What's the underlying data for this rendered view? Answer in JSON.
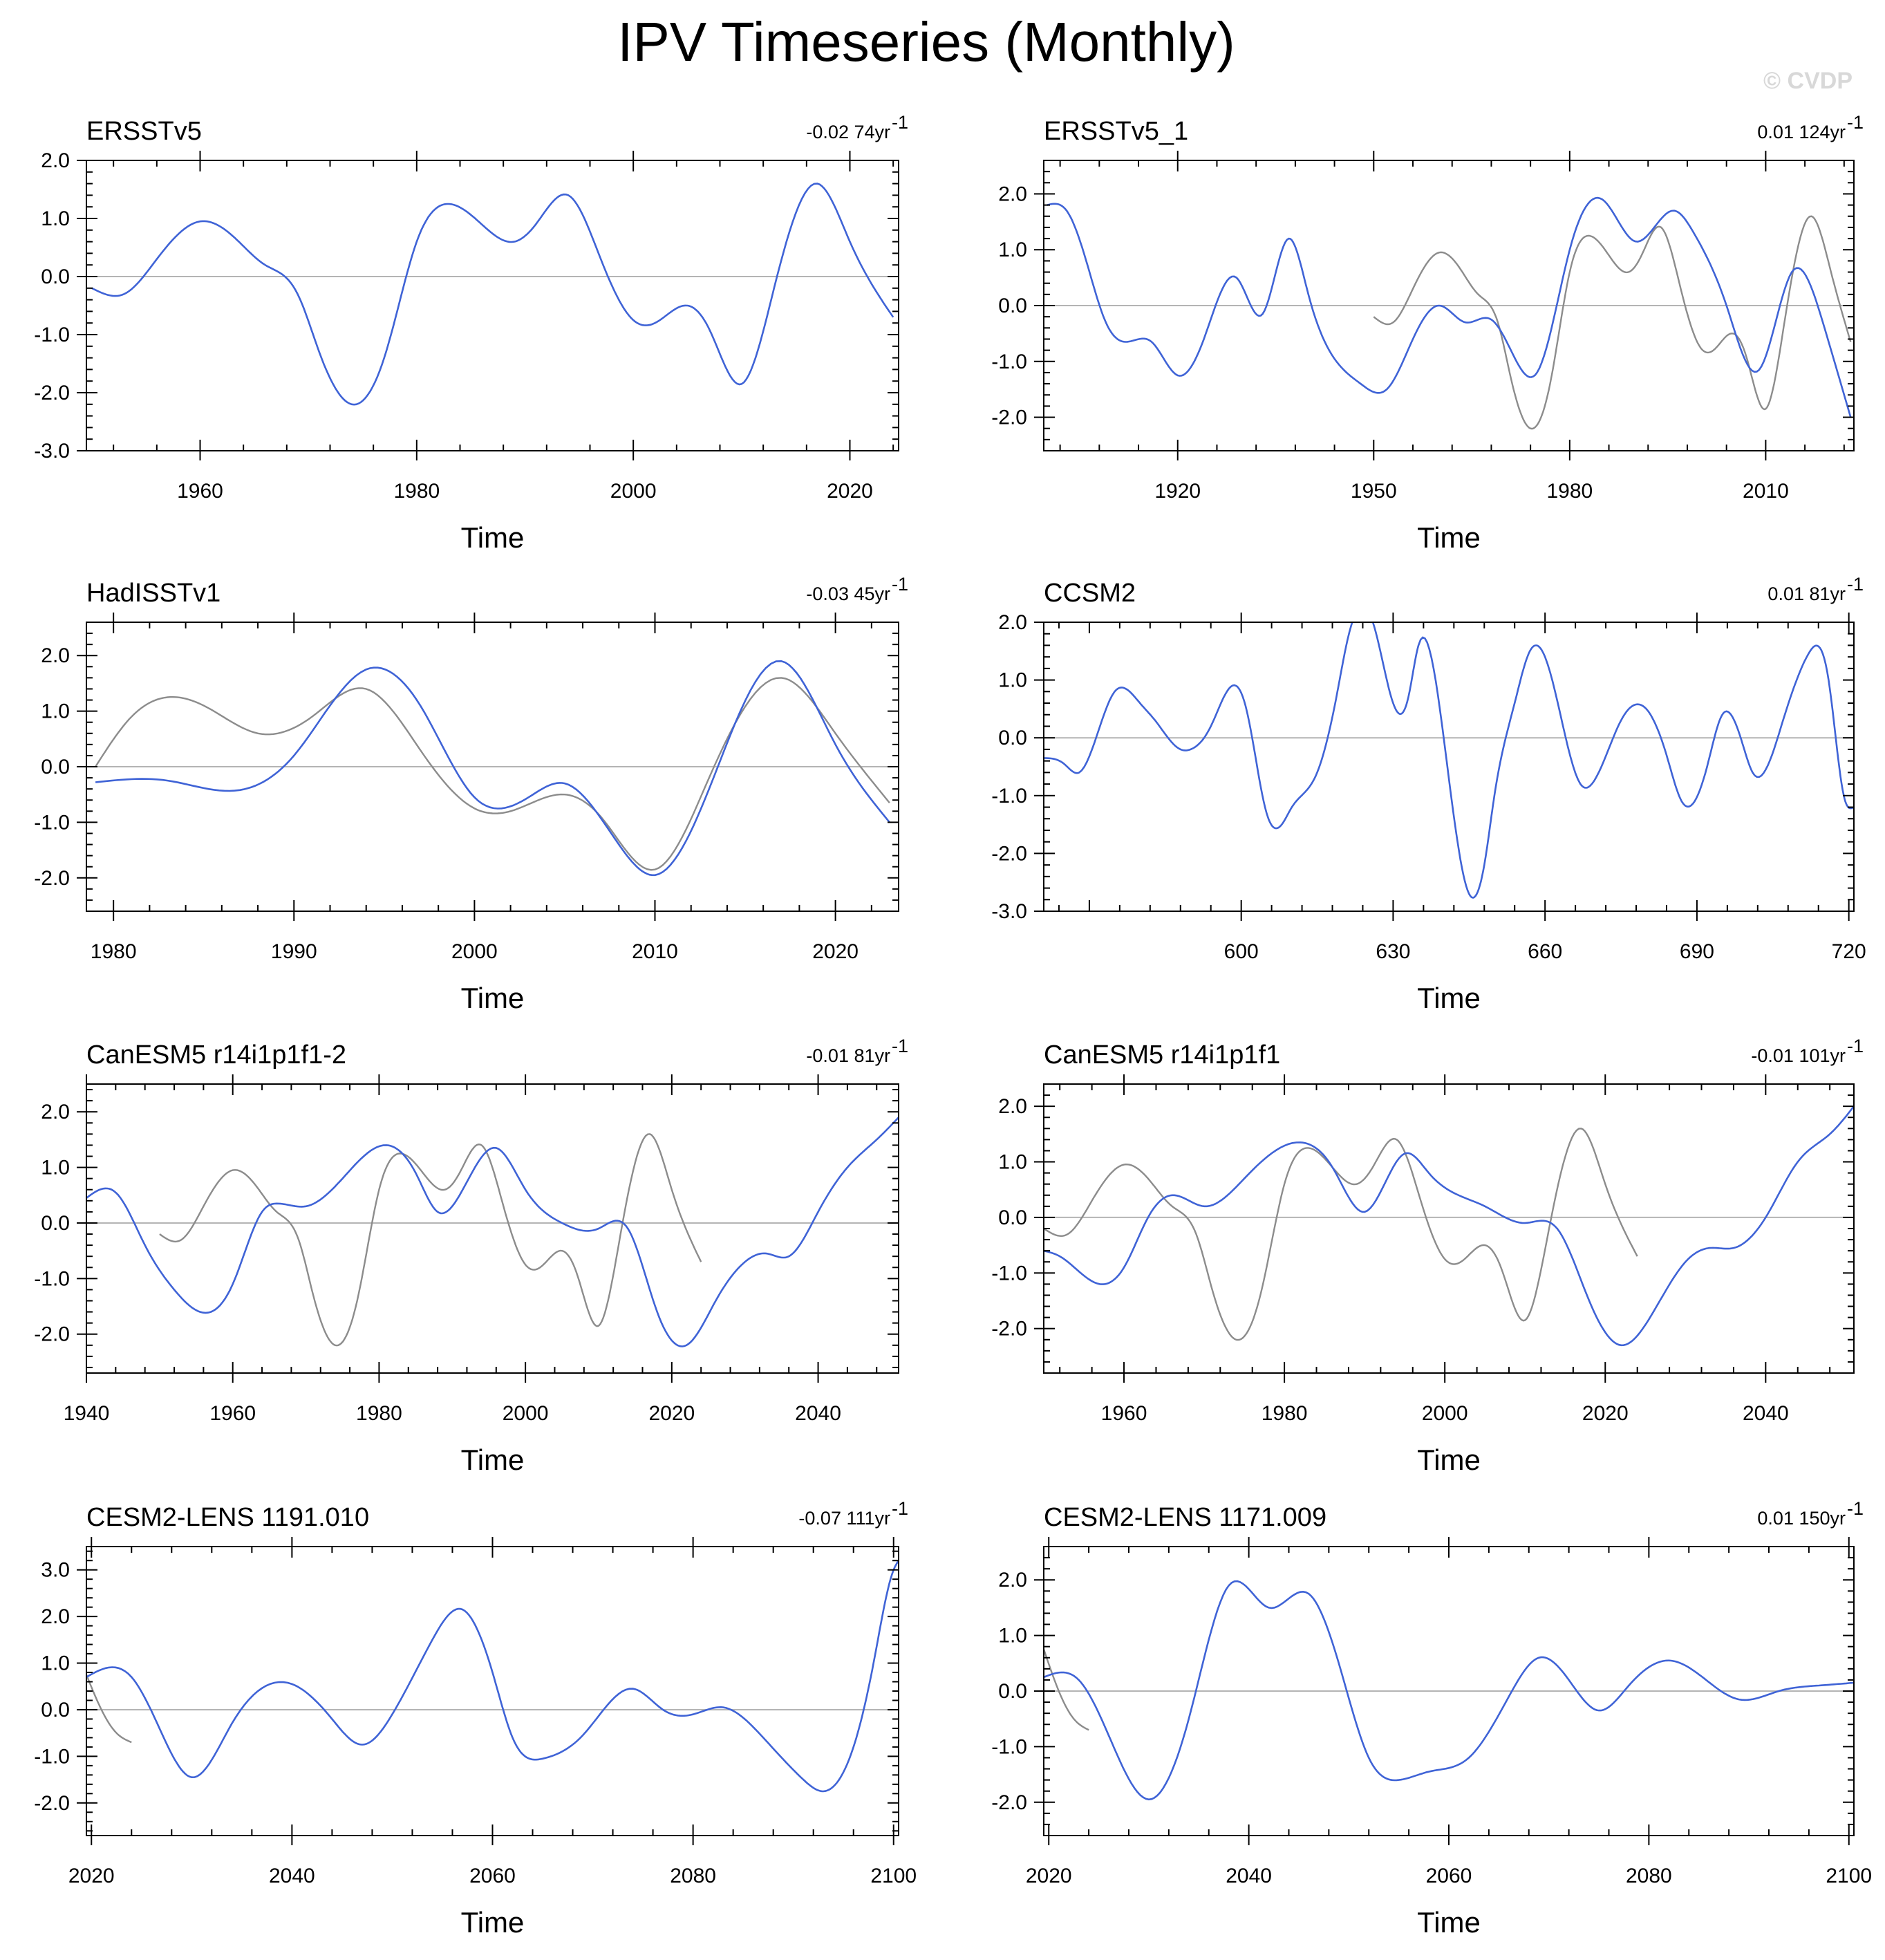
{
  "title": "IPV Timeseries (Monthly)",
  "watermark": "© CVDP",
  "colors": {
    "primary": "#3f63d6",
    "comparison": "#8c8c8c",
    "zero_line": "#b4b4b4",
    "frame": "#000000"
  },
  "chart_data": [
    {
      "type": "line",
      "title": "ERSSTv5",
      "trend_label": "-0.02 74yr",
      "trend_sup": "-1",
      "xlabel": "Time",
      "xlim": [
        1949.5,
        2024.5
      ],
      "ylim": [
        -3.0,
        2.0
      ],
      "xticks": [
        1960,
        1980,
        2000,
        2020
      ],
      "yticks": [
        -3.0,
        -2.0,
        -1.0,
        0.0,
        1.0,
        2.0
      ],
      "series": [
        {
          "role": "primary",
          "x": [
            1950,
            1953,
            1956,
            1960,
            1963,
            1966,
            1969,
            1971,
            1974,
            1977,
            1980,
            1983,
            1986,
            1989,
            1991,
            1994,
            1997,
            2000,
            2002,
            2005,
            2007,
            2010,
            2013,
            2017,
            2020,
            2024
          ],
          "y": [
            -0.2,
            -0.3,
            0.3,
            0.95,
            0.7,
            0.2,
            -0.3,
            -1.3,
            -2.2,
            -1.4,
            0.6,
            1.25,
            0.9,
            0.6,
            0.9,
            1.4,
            0.3,
            -0.75,
            -0.8,
            -0.5,
            -0.9,
            -1.85,
            -0.2,
            1.6,
            0.6,
            -0.7
          ]
        }
      ]
    },
    {
      "type": "line",
      "title": "ERSSTv5_1",
      "trend_label": "0.01 124yr",
      "trend_sup": "-1",
      "xlabel": "Time",
      "xlim": [
        1899.5,
        2023.5
      ],
      "ylim": [
        -2.6,
        2.6
      ],
      "xticks": [
        1920,
        1950,
        1980,
        2010
      ],
      "yticks": [
        -2.0,
        -1.0,
        0.0,
        1.0,
        2.0
      ],
      "series": [
        {
          "role": "primary",
          "x": [
            1900,
            1903,
            1906,
            1909,
            1912,
            1916,
            1920,
            1924,
            1929,
            1933,
            1937,
            1940,
            1945,
            1948,
            1952,
            1956,
            1960,
            1964,
            1968,
            1971,
            1975,
            1980,
            1985,
            1990,
            1996,
            1999,
            2004,
            2009,
            2014,
            2019,
            2023
          ],
          "y": [
            1.8,
            1.7,
            0.8,
            -0.3,
            -0.65,
            -0.65,
            -1.25,
            -0.6,
            0.5,
            -0.15,
            1.2,
            0.2,
            -1.1,
            -1.4,
            -1.5,
            -0.6,
            0.0,
            -0.3,
            -0.25,
            -0.8,
            -1.2,
            1.0,
            1.9,
            1.15,
            1.7,
            1.3,
            0.0,
            -1.15,
            0.6,
            -0.4,
            -2.0
          ]
        },
        {
          "role": "comparison",
          "x": [
            1950,
            1953,
            1956,
            1960,
            1963,
            1966,
            1969,
            1971,
            1974,
            1977,
            1980,
            1983,
            1986,
            1989,
            1991,
            1994,
            1997,
            2000,
            2002,
            2005,
            2007,
            2010,
            2013,
            2017,
            2020,
            2023
          ],
          "y": [
            -0.2,
            -0.3,
            0.3,
            0.95,
            0.7,
            0.2,
            -0.3,
            -1.3,
            -2.2,
            -1.4,
            0.6,
            1.25,
            0.9,
            0.6,
            0.9,
            1.4,
            0.3,
            -0.75,
            -0.8,
            -0.5,
            -0.9,
            -1.85,
            -0.2,
            1.6,
            0.6,
            -0.65
          ]
        }
      ]
    },
    {
      "type": "line",
      "title": "HadISSTv1",
      "trend_label": "-0.03 45yr",
      "trend_sup": "-1",
      "xlabel": "Time",
      "xlim": [
        1978.5,
        2023.5
      ],
      "ylim": [
        -2.6,
        2.6
      ],
      "xticks": [
        1980,
        1990,
        2000,
        2010,
        2020
      ],
      "yticks": [
        -2.0,
        -1.0,
        0.0,
        1.0,
        2.0
      ],
      "series": [
        {
          "role": "primary",
          "x": [
            1979,
            1983,
            1987,
            1990,
            1994,
            1997,
            2000,
            2003,
            2005,
            2008,
            2010,
            2013,
            2017,
            2020,
            2023
          ],
          "y": [
            -0.28,
            -0.25,
            -0.42,
            0.2,
            1.75,
            1.1,
            -0.55,
            -0.55,
            -0.3,
            -1.4,
            -1.95,
            -0.4,
            1.9,
            0.4,
            -1.0
          ]
        },
        {
          "role": "comparison",
          "x": [
            1979,
            1981,
            1983,
            1985,
            1988,
            1991,
            1994,
            1997,
            2000,
            2002,
            2005,
            2007,
            2010,
            2013,
            2017,
            2020,
            2023
          ],
          "y": [
            0.0,
            0.9,
            1.25,
            1.1,
            0.6,
            0.9,
            1.4,
            0.3,
            -0.75,
            -0.8,
            -0.5,
            -0.9,
            -1.85,
            -0.2,
            1.6,
            0.6,
            -0.65
          ]
        }
      ]
    },
    {
      "type": "line",
      "title": "CCSM2",
      "trend_label": "0.01 81yr",
      "trend_sup": "-1",
      "xlabel": "Time",
      "xlim": [
        561,
        721
      ],
      "ylim": [
        -3.0,
        2.0
      ],
      "xticks": [
        600,
        630,
        660,
        690,
        720
      ],
      "yticks": [
        -3.0,
        -2.0,
        -1.0,
        0.0,
        1.0,
        2.0
      ],
      "series": [
        {
          "role": "primary",
          "x": [
            561,
            565,
            568,
            575,
            580,
            583,
            588,
            590,
            594,
            599,
            601,
            605,
            608,
            610,
            613,
            615,
            619,
            621,
            626,
            630,
            633,
            635,
            641,
            645,
            648,
            650,
            654,
            657,
            660,
            667,
            670,
            675,
            680,
            684,
            687,
            692,
            695,
            699,
            701,
            707,
            712,
            716,
            719,
            721
          ],
          "y": [
            -0.35,
            -0.45,
            -0.6,
            0.8,
            0.6,
            0.3,
            -0.2,
            -0.2,
            0.2,
            0.9,
            0.5,
            -1.3,
            -1.5,
            -1.2,
            -0.9,
            -0.6,
            0.8,
            1.7,
            2.0,
            0.6,
            0.7,
            1.6,
            -0.7,
            -2.7,
            -2.2,
            -1.0,
            0.6,
            1.5,
            1.4,
            -0.8,
            -0.7,
            0.3,
            0.5,
            -0.3,
            -1.1,
            -0.5,
            0.4,
            -0.1,
            -0.6,
            0.3,
            1.45,
            1.0,
            -1.0,
            -1.2
          ]
        }
      ]
    },
    {
      "type": "line",
      "title": "CanESM5 r14i1p1f1-2",
      "trend_label": "-0.01 81yr",
      "trend_sup": "-1",
      "xlabel": "Time",
      "xlim": [
        1940,
        2051
      ],
      "ylim": [
        -2.7,
        2.5
      ],
      "xticks": [
        1940,
        1960,
        1980,
        2000,
        2020,
        2040
      ],
      "yticks": [
        -2.0,
        -1.0,
        0.0,
        1.0,
        2.0
      ],
      "series": [
        {
          "role": "primary",
          "x": [
            1940,
            1944,
            1948,
            1952,
            1957,
            1960,
            1964,
            1966,
            1970,
            1975,
            1981,
            1985,
            1988,
            1991,
            1996,
            2000,
            2005,
            2010,
            2014,
            2018,
            2022,
            2026,
            2030,
            2033,
            2036,
            2040,
            2044,
            2048,
            2051
          ],
          "y": [
            0.45,
            0.55,
            -0.4,
            -1.2,
            -1.6,
            -1.1,
            0.2,
            0.35,
            0.3,
            0.8,
            1.4,
            0.9,
            0.2,
            0.5,
            1.35,
            0.6,
            0.0,
            -0.1,
            -0.1,
            -1.6,
            -2.2,
            -1.4,
            -0.7,
            -0.55,
            -0.6,
            0.2,
            1.0,
            1.5,
            1.9
          ]
        },
        {
          "role": "comparison",
          "x": [
            1950,
            1953,
            1956,
            1960,
            1963,
            1966,
            1969,
            1971,
            1974,
            1977,
            1980,
            1983,
            1986,
            1989,
            1991,
            1994,
            1997,
            2000,
            2002,
            2005,
            2007,
            2010,
            2013,
            2017,
            2020,
            2024
          ],
          "y": [
            -0.2,
            -0.3,
            0.3,
            0.95,
            0.7,
            0.2,
            -0.3,
            -1.3,
            -2.2,
            -1.4,
            0.6,
            1.25,
            0.9,
            0.6,
            0.9,
            1.4,
            0.3,
            -0.75,
            -0.8,
            -0.5,
            -0.9,
            -1.85,
            -0.2,
            1.6,
            0.6,
            -0.7
          ]
        }
      ]
    },
    {
      "type": "line",
      "title": "CanESM5 r14i1p1f1",
      "trend_label": "-0.01 101yr",
      "trend_sup": "-1",
      "xlabel": "Time",
      "xlim": [
        1950,
        2051
      ],
      "ylim": [
        -2.8,
        2.4
      ],
      "xticks": [
        1960,
        1980,
        2000,
        2020,
        2040
      ],
      "yticks": [
        -2.0,
        -1.0,
        0.0,
        1.0,
        2.0
      ],
      "series": [
        {
          "role": "primary",
          "x": [
            1950,
            1952,
            1957,
            1960,
            1963,
            1966,
            1970,
            1975,
            1982,
            1986,
            1990,
            1995,
            1998,
            2001,
            2005,
            2010,
            2014,
            2018,
            2022,
            2026,
            2030,
            2033,
            2036,
            2040,
            2044,
            2048,
            2051
          ],
          "y": [
            -0.6,
            -0.7,
            -1.2,
            -0.9,
            0.0,
            0.4,
            0.2,
            0.7,
            1.35,
            0.9,
            0.1,
            1.15,
            0.8,
            0.45,
            0.2,
            -0.1,
            -0.2,
            -1.5,
            -2.3,
            -1.7,
            -0.8,
            -0.55,
            -0.55,
            0.0,
            1.0,
            1.5,
            2.0
          ]
        },
        {
          "role": "comparison",
          "x": [
            1950,
            1953,
            1956,
            1960,
            1963,
            1966,
            1969,
            1971,
            1974,
            1977,
            1980,
            1983,
            1986,
            1989,
            1991,
            1994,
            1997,
            2000,
            2002,
            2005,
            2007,
            2010,
            2013,
            2017,
            2020,
            2024
          ],
          "y": [
            -0.2,
            -0.3,
            0.3,
            0.95,
            0.7,
            0.2,
            -0.3,
            -1.3,
            -2.2,
            -1.4,
            0.6,
            1.25,
            0.9,
            0.6,
            0.9,
            1.4,
            0.3,
            -0.75,
            -0.8,
            -0.5,
            -0.9,
            -1.85,
            -0.2,
            1.6,
            0.6,
            -0.7
          ]
        }
      ]
    },
    {
      "type": "line",
      "title": "CESM2-LENS 1191.010",
      "trend_label": "-0.07 111yr",
      "trend_sup": "-1",
      "xlabel": "Time",
      "xlim": [
        2019.5,
        2100.5
      ],
      "ylim": [
        -2.7,
        3.5
      ],
      "xticks": [
        2020,
        2040,
        2060,
        2080,
        2100
      ],
      "yticks": [
        -2.0,
        -1.0,
        0.0,
        1.0,
        2.0,
        3.0
      ],
      "series": [
        {
          "role": "primary",
          "x": [
            2019.5,
            2024,
            2027,
            2030,
            2034,
            2040,
            2044,
            2047,
            2050,
            2054,
            2057,
            2060,
            2062,
            2065,
            2069,
            2074,
            2077,
            2080,
            2083,
            2087,
            2091,
            2093,
            2096,
            2098,
            2100,
            2100.5
          ],
          "y": [
            0.7,
            0.7,
            -0.5,
            -1.45,
            -0.3,
            0.55,
            -0.2,
            -0.75,
            -0.1,
            1.5,
            2.15,
            0.8,
            -0.6,
            -1.05,
            -0.55,
            0.45,
            0.0,
            -0.1,
            0.05,
            -0.6,
            -1.5,
            -1.75,
            -0.8,
            1.0,
            3.0,
            3.2
          ]
        },
        {
          "role": "comparison",
          "x": [
            2019.5,
            2021,
            2022.5,
            2024
          ],
          "y": [
            0.75,
            0.0,
            -0.5,
            -0.7
          ]
        }
      ]
    },
    {
      "type": "line",
      "title": "CESM2-LENS 1171.009",
      "trend_label": "0.01 150yr",
      "trend_sup": "-1",
      "xlabel": "Time",
      "xlim": [
        2019.5,
        2100.5
      ],
      "ylim": [
        -2.6,
        2.6
      ],
      "xticks": [
        2020,
        2040,
        2060,
        2080,
        2100
      ],
      "yticks": [
        -2.0,
        -1.0,
        0.0,
        1.0,
        2.0
      ],
      "series": [
        {
          "role": "primary",
          "x": [
            2019.5,
            2023,
            2026,
            2030,
            2034,
            2038,
            2042,
            2046,
            2049,
            2052,
            2055,
            2058,
            2062,
            2066,
            2069,
            2072,
            2075,
            2078,
            2082,
            2085,
            2089,
            2093,
            2097,
            2100.5
          ],
          "y": [
            0.25,
            0.2,
            -0.8,
            -1.95,
            -0.5,
            1.9,
            1.5,
            1.75,
            0.5,
            -1.2,
            -1.6,
            -1.45,
            -1.2,
            -0.1,
            0.6,
            0.2,
            -0.35,
            0.1,
            0.55,
            0.3,
            -0.15,
            0.0,
            0.1,
            0.15
          ]
        },
        {
          "role": "comparison",
          "x": [
            2019.5,
            2021,
            2022.5,
            2024
          ],
          "y": [
            0.75,
            0.0,
            -0.5,
            -0.7
          ]
        }
      ]
    }
  ]
}
